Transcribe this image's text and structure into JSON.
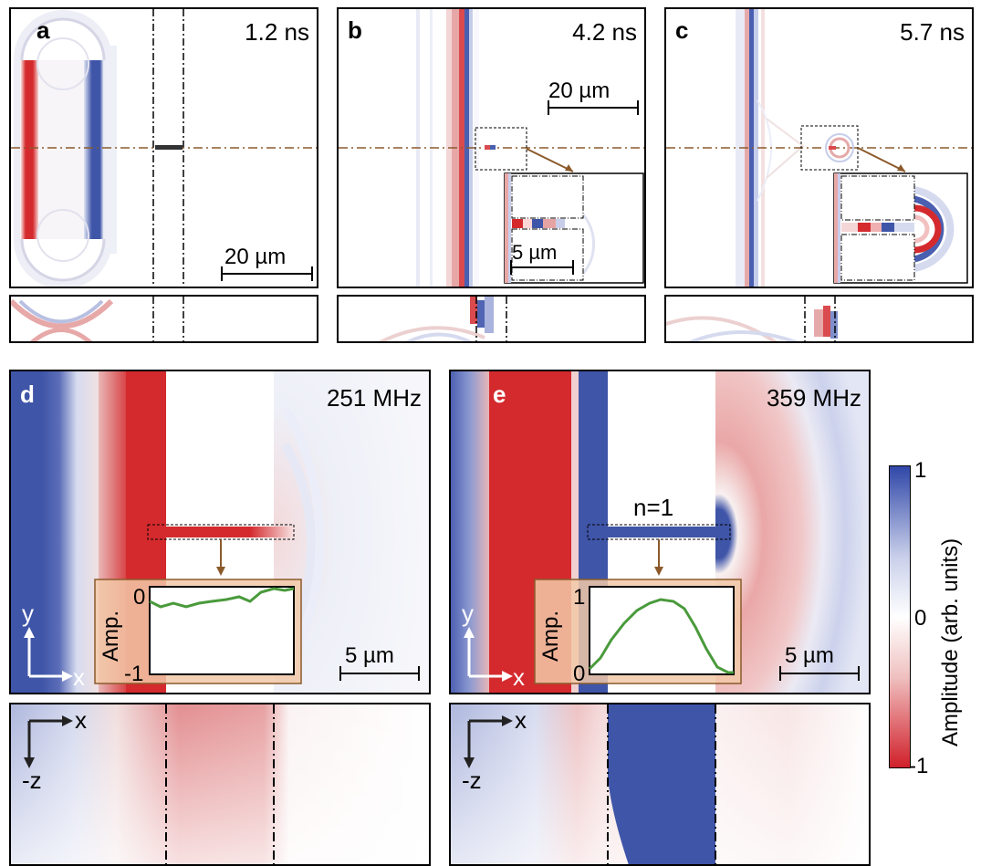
{
  "panels": {
    "a": {
      "label": "a",
      "time": "1.2 ns",
      "scale": "20 µm"
    },
    "b": {
      "label": "b",
      "time": "4.2 ns",
      "scale": "20 µm",
      "inset_scale": "5 µm"
    },
    "c": {
      "label": "c",
      "time": "5.7 ns"
    },
    "d": {
      "label": "d",
      "freq": "251 MHz",
      "scale": "5 µm",
      "inset": {
        "ylabel": "Amp.",
        "ymax": "0",
        "ymin": "-1"
      },
      "axis_y": "y",
      "axis_x": "x",
      "lower_axis_x": "x",
      "lower_axis_z": "-z"
    },
    "e": {
      "label": "e",
      "freq": "359 MHz",
      "scale": "5 µm",
      "mode": "n=1",
      "inset": {
        "ylabel": "Amp.",
        "ymax": "1",
        "ymin": "0"
      },
      "axis_y": "y",
      "axis_x": "x",
      "lower_axis_x": "x",
      "lower_axis_z": "-z"
    }
  },
  "colorbar": {
    "label": "Amplitude (arb. units)",
    "ticks": [
      "1",
      "0",
      "-1"
    ],
    "colors": {
      "high": "#2f47a8",
      "mid": "#ffffff",
      "low": "#d0202a"
    }
  },
  "colors": {
    "red": "#d42a2e",
    "blue": "#3f55a8",
    "brown": "#8b5a2b",
    "green": "#4a9a3c",
    "inset_bg": "#f2c9a8"
  }
}
